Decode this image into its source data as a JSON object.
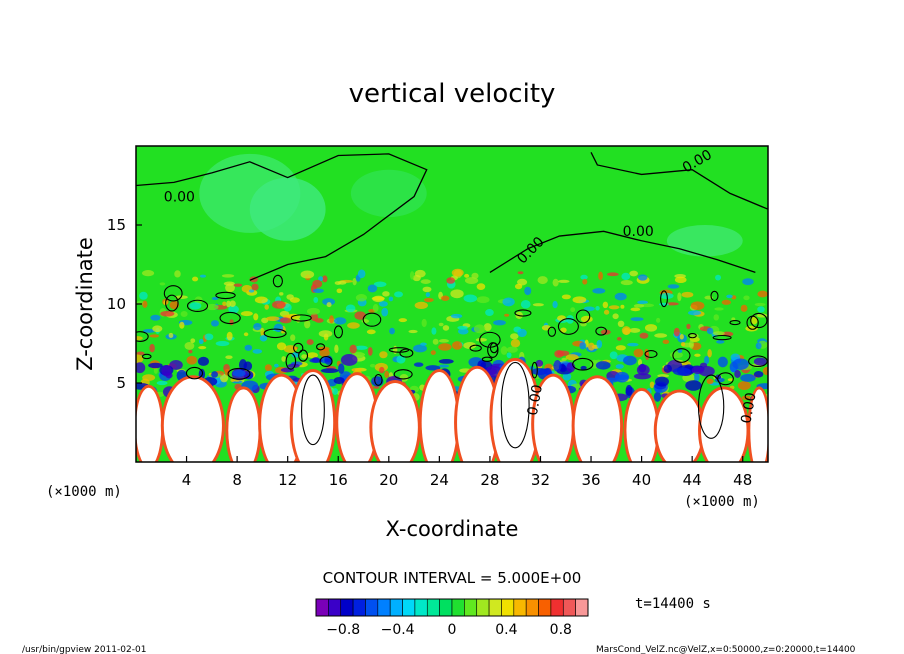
{
  "chart_data": {
    "type": "heatmap",
    "title": "vertical velocity",
    "xlabel": "X-coordinate",
    "ylabel": "Z-coordinate",
    "x_unit_left": "(×1000 m)",
    "x_unit_right": "(×1000 m)",
    "xlim": [
      0,
      50
    ],
    "ylim": [
      0,
      20
    ],
    "x_ticks": [
      "4",
      "8",
      "12",
      "16",
      "20",
      "24",
      "28",
      "32",
      "36",
      "40",
      "44",
      "48"
    ],
    "x_tick_values": [
      4,
      8,
      12,
      16,
      20,
      24,
      28,
      32,
      36,
      40,
      44,
      48
    ],
    "y_ticks": [
      "5",
      "10",
      "15"
    ],
    "y_tick_values": [
      5,
      10,
      15
    ],
    "contour_labels": [
      "0.00",
      "0.00",
      "0.00",
      "0.00",
      "0.00",
      "0.00"
    ],
    "contour_interval_text": "CONTOUR INTERVAL = 5.000E+00",
    "time_label": "t=14400 s",
    "colorbar": {
      "tick_labels": [
        "−0.8",
        "−0.4",
        "0",
        "0.4",
        "0.8"
      ],
      "tick_values": [
        -0.8,
        -0.4,
        0,
        0.4,
        0.8
      ],
      "colors": [
        "#7a00b8",
        "#3a00c8",
        "#0000c8",
        "#0020e0",
        "#0050f0",
        "#0080ff",
        "#00b0ff",
        "#00d8f8",
        "#00e8c8",
        "#00e898",
        "#00e060",
        "#20e030",
        "#60e820",
        "#a0e820",
        "#d0e820",
        "#f0e000",
        "#f8b800",
        "#f89000",
        "#f86000",
        "#f03030",
        "#f05858",
        "#f89898"
      ]
    },
    "footer_left": "/usr/bin/gpview  2011-02-01",
    "footer_right": "MarsCond_VelZ.nc@VelZ,x=0:50000,z=0:20000,t=14400"
  }
}
